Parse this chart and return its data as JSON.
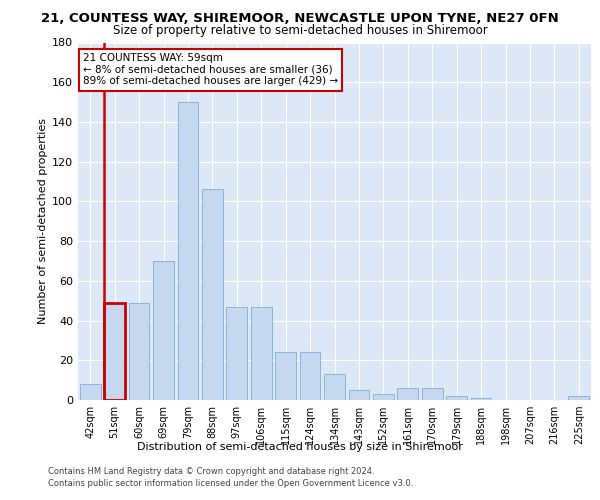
{
  "title": "21, COUNTESS WAY, SHIREMOOR, NEWCASTLE UPON TYNE, NE27 0FN",
  "subtitle": "Size of property relative to semi-detached houses in Shiremoor",
  "xlabel": "Distribution of semi-detached houses by size in Shiremoor",
  "ylabel": "Number of semi-detached properties",
  "categories": [
    "42sqm",
    "51sqm",
    "60sqm",
    "69sqm",
    "79sqm",
    "88sqm",
    "97sqm",
    "106sqm",
    "115sqm",
    "124sqm",
    "134sqm",
    "143sqm",
    "152sqm",
    "161sqm",
    "170sqm",
    "179sqm",
    "188sqm",
    "198sqm",
    "207sqm",
    "216sqm",
    "225sqm"
  ],
  "values": [
    8,
    49,
    49,
    70,
    150,
    106,
    47,
    47,
    24,
    24,
    13,
    5,
    3,
    6,
    6,
    2,
    1,
    0,
    0,
    0,
    2
  ],
  "bar_color": "#c5d8f0",
  "bar_edge_color": "#7badd4",
  "highlight_bar_index": 1,
  "highlight_edge_color": "#cc0000",
  "annotation_text": "21 COUNTESS WAY: 59sqm\n← 8% of semi-detached houses are smaller (36)\n89% of semi-detached houses are larger (429) →",
  "annotation_box_color": "#ffffff",
  "annotation_box_edge_color": "#cc0000",
  "ylim": [
    0,
    180
  ],
  "yticks": [
    0,
    20,
    40,
    60,
    80,
    100,
    120,
    140,
    160,
    180
  ],
  "bg_color": "#dce8f5",
  "footer_line1": "Contains HM Land Registry data © Crown copyright and database right 2024.",
  "footer_line2": "Contains public sector information licensed under the Open Government Licence v3.0."
}
